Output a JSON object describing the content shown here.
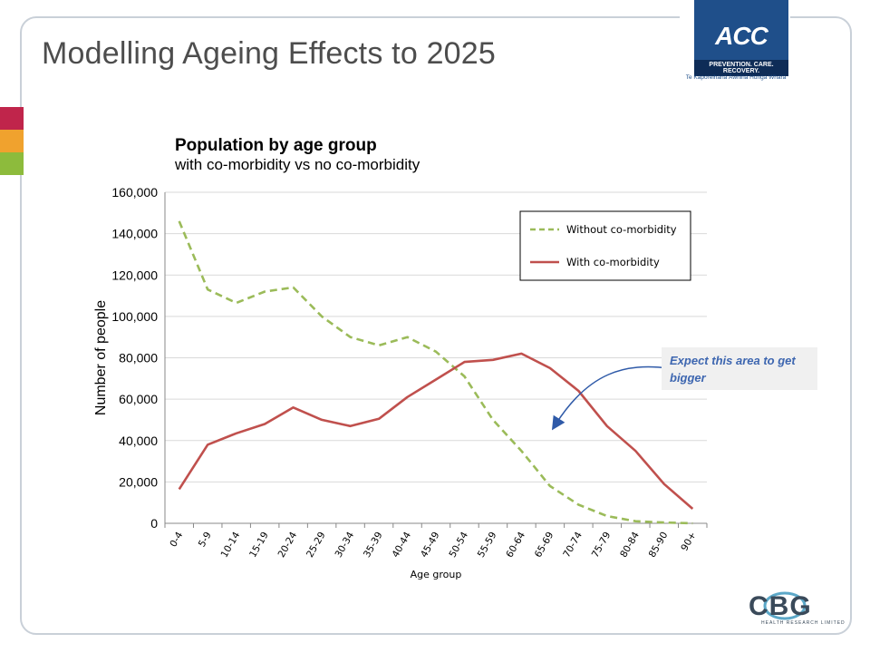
{
  "slide": {
    "title": "Modelling Ageing Effects to 2025",
    "annotation": "Expect this area to get bigger"
  },
  "logo": {
    "brand": "ACC",
    "tagline": "PREVENTION. CARE. RECOVERY.",
    "subtitle": "Te Kaporeihana Āwhina Hunga Whara"
  },
  "footer_logo": {
    "brand": "CBG",
    "subtitle": "HEALTH RESEARCH LIMITED"
  },
  "colors": {
    "without": "#9bbb59",
    "with": "#c0504d",
    "annotation_text": "#3d66b0",
    "arrow": "#2f5aa8",
    "bar1": "#c0254b",
    "bar2": "#f0a22e",
    "bar3": "#8dbb3c"
  },
  "chart_data": {
    "type": "line",
    "title": "Population by age group",
    "subtitle": "with co-morbidity vs no co-morbidity",
    "xlabel": "Age group",
    "ylabel": "Number of people",
    "ylim": [
      0,
      160000
    ],
    "yticks": [
      "0",
      "20,000",
      "40,000",
      "60,000",
      "80,000",
      "100,000",
      "120,000",
      "140,000",
      "160,000"
    ],
    "categories": [
      "0-4",
      "5-9",
      "10-14",
      "15-19",
      "20-24",
      "25-29",
      "30-34",
      "35-39",
      "40-44",
      "45-49",
      "50-54",
      "55-59",
      "60-64",
      "65-69",
      "70-74",
      "75-79",
      "80-84",
      "85-90",
      "90+"
    ],
    "legend_position": "top-right",
    "grid": true,
    "series": [
      {
        "name": "Without co-morbidity",
        "style": "dashed",
        "values": [
          146000,
          113000,
          106500,
          112000,
          114000,
          100000,
          90000,
          86000,
          90000,
          83000,
          71000,
          50000,
          35000,
          18000,
          9000,
          3500,
          1000,
          400,
          0
        ]
      },
      {
        "name": "With co-morbidity",
        "style": "solid",
        "values": [
          16500,
          38000,
          43500,
          48000,
          56000,
          50000,
          47000,
          50500,
          61000,
          69500,
          78000,
          79000,
          82000,
          75000,
          64000,
          47000,
          35000,
          19000,
          7000
        ]
      }
    ]
  }
}
